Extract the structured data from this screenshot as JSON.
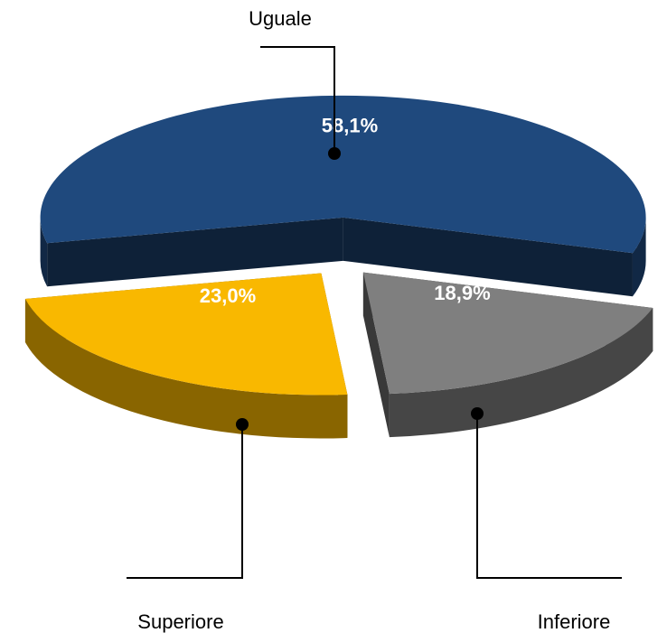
{
  "chart_data": {
    "type": "pie",
    "categories": [
      "Uguale",
      "Inferiore",
      "Superiore"
    ],
    "values": [
      58.1,
      18.9,
      23.0
    ],
    "value_labels": [
      "58,1%",
      "18,9%",
      "23,0%"
    ],
    "colors": [
      "#1f497d",
      "#7f7f7f",
      "#f9b800"
    ]
  }
}
